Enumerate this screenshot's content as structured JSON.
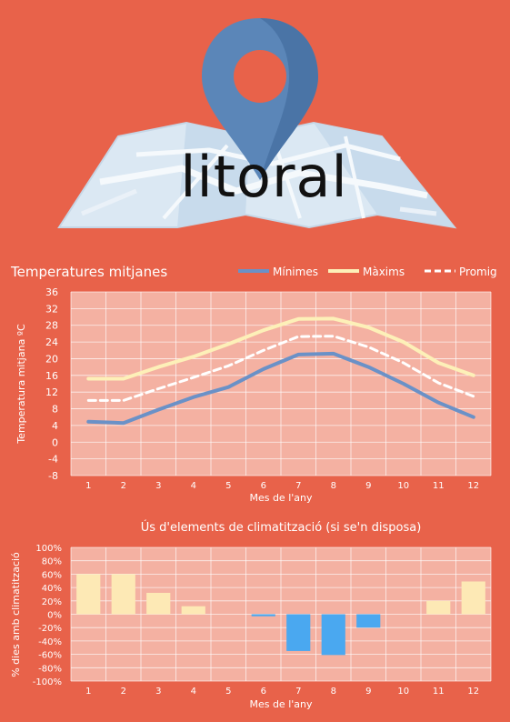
{
  "hero": {
    "title": "litoral",
    "icon": "map-pin-icon",
    "map": "folded-map-icon"
  },
  "colors": {
    "background": "#e8624a",
    "plot_bg": "#f4b1a2",
    "minimes": "#6a91c7",
    "maximes": "#fdf0b8",
    "promig": "#ffffff",
    "bar_positive": "#fde9b5",
    "bar_negative": "#4aa8f0"
  },
  "chart_data": [
    {
      "type": "line",
      "title": "Temperatures mitjanes",
      "xlabel": "Mes de l'any",
      "ylabel": "Temperatura mitjana ºC",
      "categories": [
        "1",
        "2",
        "3",
        "4",
        "5",
        "6",
        "7",
        "8",
        "9",
        "10",
        "11",
        "12"
      ],
      "ylim": [
        -8,
        36
      ],
      "yticks": [
        "-8",
        "-4",
        "0",
        "4",
        "8",
        "12",
        "16",
        "20",
        "24",
        "28",
        "32",
        "36"
      ],
      "legend": "top-right",
      "grid": true,
      "series": [
        {
          "name": "Mínimes",
          "values": [
            4.9,
            4.6,
            7.8,
            10.8,
            13.2,
            17.5,
            21.0,
            21.2,
            18.0,
            14.0,
            9.5,
            6.0
          ]
        },
        {
          "name": "Màxims",
          "values": [
            15.2,
            15.2,
            18.0,
            20.5,
            23.5,
            26.8,
            29.5,
            29.6,
            27.5,
            24.0,
            19.0,
            16.0
          ]
        },
        {
          "name": "Promig",
          "values": [
            10.0,
            10.0,
            12.8,
            15.5,
            18.3,
            22.0,
            25.3,
            25.4,
            22.8,
            19.0,
            14.2,
            11.0
          ]
        }
      ]
    },
    {
      "type": "bar",
      "title": "Ús d'elements de climatització (si se'n disposa)",
      "xlabel": "Mes de l'any",
      "ylabel": "% dies amb climatització",
      "categories": [
        "1",
        "2",
        "3",
        "4",
        "5",
        "6",
        "7",
        "8",
        "9",
        "10",
        "11",
        "12"
      ],
      "ylim": [
        -100,
        100
      ],
      "yticks": [
        "-100%",
        "-80%",
        "-60%",
        "-40%",
        "-20%",
        "0%",
        "20%",
        "40%",
        "60%",
        "80%",
        "100%"
      ],
      "grid": true,
      "values": [
        60,
        60,
        32,
        12,
        0,
        -3,
        -55,
        -61,
        -20,
        0,
        20,
        49
      ]
    }
  ]
}
